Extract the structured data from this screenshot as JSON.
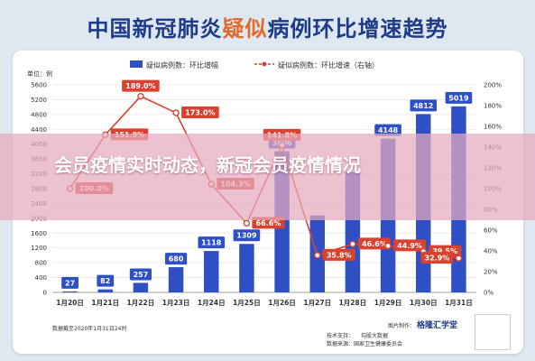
{
  "page": {
    "title_part1": "中国新冠肺炎",
    "title_highlight": "疑似",
    "title_part2": "病例环比增速趋势",
    "banner_text": "会员疫情实时动态，新冠会员疫情情况",
    "note": "数据截至2020年1月31日24时",
    "source": "数据来源：国家卫生健康委员会",
    "drawing": "图片制作：",
    "brand": "格隆汇学堂",
    "support": "技术支持：",
    "support2": "勾股大数据"
  },
  "colors": {
    "bar": "#2f4fc4",
    "line": "#d9422f",
    "title": "#1f3c88",
    "highlight": "#e06b2c"
  },
  "chart_data": {
    "type": "bar",
    "categories": [
      "1月20日",
      "1月21日",
      "1月22日",
      "1月23日",
      "1月24日",
      "1月25日",
      "1月26日",
      "1月27日",
      "1月28日",
      "1月29日",
      "1月30日",
      "1月31日"
    ],
    "series": [
      {
        "name": "疑似病例数：环比增幅",
        "type": "bar",
        "axis": "left",
        "values": [
          27,
          82,
          257,
          680,
          1118,
          1309,
          3806,
          2077,
          3248,
          4148,
          4812,
          5019
        ],
        "labels": [
          "27",
          "82",
          "257",
          "680",
          "1118",
          "1309",
          "3806",
          "",
          "",
          "4148",
          "4812",
          "5019"
        ]
      },
      {
        "name": "疑似病例数：环比增速（右轴）",
        "type": "line",
        "axis": "right",
        "values": [
          100.0,
          151.9,
          189.0,
          173.0,
          104.3,
          66.6,
          141.8,
          35.8,
          46.6,
          44.9,
          39.5,
          32.9
        ],
        "labels": [
          "100.0%",
          "151.9%",
          "189.0%",
          "173.0%",
          "104.3%",
          "66.6%",
          "141.8%",
          "35.8%",
          "46.6%",
          "44.9%",
          "39.5%",
          "32.9%"
        ]
      }
    ],
    "ylabel_left": "单位：例",
    "ylim_left": [
      0,
      5600
    ],
    "yticks_left": [
      "0",
      "400",
      "800",
      "1200",
      "1600",
      "2000",
      "2400",
      "2800",
      "3200",
      "3600",
      "4000",
      "4400",
      "4800",
      "5200",
      "5600"
    ],
    "ylim_right": [
      0,
      200
    ],
    "yticks_right": [
      "0%",
      "20%",
      "40%",
      "60%",
      "80%",
      "100%",
      "120%",
      "140%",
      "160%",
      "180%",
      "200%"
    ],
    "grid": true,
    "legend_position": "top"
  }
}
